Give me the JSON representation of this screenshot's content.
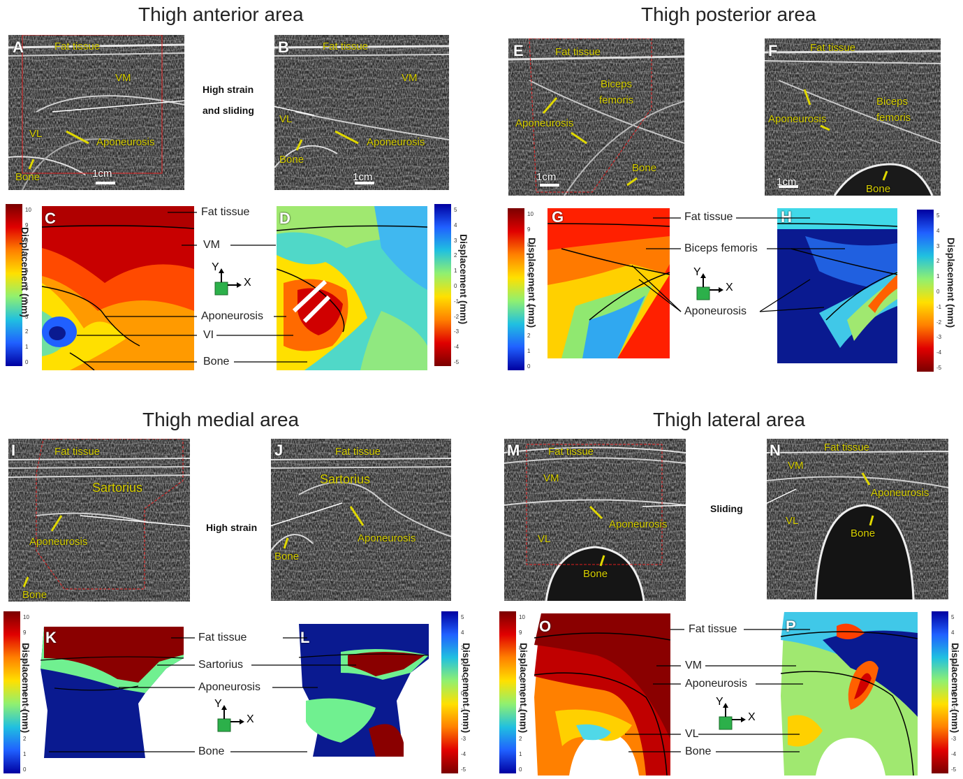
{
  "titles": {
    "anterior": "Thigh anterior area",
    "posterior": "Thigh posterior area",
    "medial": "Thigh medial area",
    "lateral": "Thigh lateral area"
  },
  "panel_letters": {
    "A": "A",
    "B": "B",
    "C": "C",
    "D": "D",
    "E": "E",
    "F": "F",
    "G": "G",
    "H": "H",
    "I": "I",
    "J": "J",
    "K": "K",
    "L": "L",
    "M": "M",
    "N": "N",
    "O": "O",
    "P": "P"
  },
  "us_labels": {
    "fat_tissue": "Fat tissue",
    "vm": "VM",
    "vl": "VL",
    "aponeurosis": "Aponeurosis",
    "bone": "Bone",
    "scale": "1cm",
    "biceps_1": "Biceps",
    "biceps_2": "femoris",
    "sartorius": "Sartorius"
  },
  "callouts": {
    "high_strain_sliding_1": "High strain",
    "high_strain_sliding_2": "and sliding",
    "high_strain": "High strain",
    "sliding": "Sliding"
  },
  "map_labels": {
    "fat_tissue": "Fat tissue",
    "vm": "VM",
    "aponeurosis": "Aponeurosis",
    "vi": "VI",
    "bone": "Bone",
    "biceps_femoris": "Biceps femoris",
    "sartorius": "Sartorius",
    "vl": "VL"
  },
  "axes": {
    "y": "Y",
    "x": "X"
  },
  "colorbar": {
    "title": "Displacement (mm)",
    "ticks_positive": [
      "10",
      "9",
      "8",
      "7",
      "6",
      "5",
      "4",
      "3",
      "2",
      "1",
      "0"
    ],
    "ticks_signed": [
      "5",
      "4",
      "3",
      "2",
      "1",
      "0",
      "-1",
      "-2",
      "-3",
      "-4",
      "-5"
    ]
  },
  "colors": {
    "ultrasound_bg": "#2a2a2a",
    "roi_outline": "#e02020",
    "label_yellow": "#d8d000",
    "map_dark_red": "#8a0000",
    "map_blue": "#0a1a90",
    "map_green": "#70f090",
    "map_teal": "#40c8d8"
  }
}
